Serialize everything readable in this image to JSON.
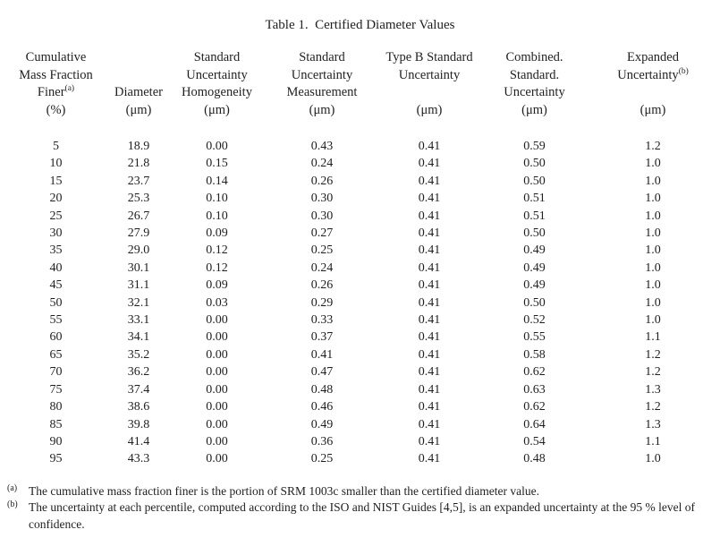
{
  "title": "Table 1.  Certified Diameter Values",
  "table": {
    "columns": [
      {
        "lines": [
          "Cumulative",
          "Mass Fraction",
          "Finer",
          "(%)"
        ],
        "sup_line": 2,
        "sup_text": "(a)"
      },
      {
        "lines": [
          "",
          "",
          "Diameter",
          "(μm)"
        ]
      },
      {
        "lines": [
          "Standard",
          "Uncertainty",
          "Homogeneity",
          "(μm)"
        ]
      },
      {
        "lines": [
          "Standard",
          "Uncertainty",
          "Measurement",
          "(μm)"
        ]
      },
      {
        "lines": [
          "Type B Standard",
          "Uncertainty",
          "",
          "(μm)"
        ]
      },
      {
        "lines": [
          "Combined.",
          "Standard.",
          "Uncertainty",
          "(μm)"
        ]
      },
      {
        "lines": [
          "Expanded",
          "Uncertainty",
          "",
          "(μm)"
        ],
        "sup_line": 1,
        "sup_text": "(b)"
      }
    ],
    "rows": [
      [
        "5",
        "18.9",
        "0.00",
        "0.43",
        "0.41",
        "0.59",
        "1.2"
      ],
      [
        "10",
        "21.8",
        "0.15",
        "0.24",
        "0.41",
        "0.50",
        "1.0"
      ],
      [
        "15",
        "23.7",
        "0.14",
        "0.26",
        "0.41",
        "0.50",
        "1.0"
      ],
      [
        "20",
        "25.3",
        "0.10",
        "0.30",
        "0.41",
        "0.51",
        "1.0"
      ],
      [
        "25",
        "26.7",
        "0.10",
        "0.30",
        "0.41",
        "0.51",
        "1.0"
      ],
      [
        "30",
        "27.9",
        "0.09",
        "0.27",
        "0.41",
        "0.50",
        "1.0"
      ],
      [
        "35",
        "29.0",
        "0.12",
        "0.25",
        "0.41",
        "0.49",
        "1.0"
      ],
      [
        "40",
        "30.1",
        "0.12",
        "0.24",
        "0.41",
        "0.49",
        "1.0"
      ],
      [
        "45",
        "31.1",
        "0.09",
        "0.26",
        "0.41",
        "0.49",
        "1.0"
      ],
      [
        "50",
        "32.1",
        "0.03",
        "0.29",
        "0.41",
        "0.50",
        "1.0"
      ],
      [
        "55",
        "33.1",
        "0.00",
        "0.33",
        "0.41",
        "0.52",
        "1.0"
      ],
      [
        "60",
        "34.1",
        "0.00",
        "0.37",
        "0.41",
        "0.55",
        "1.1"
      ],
      [
        "65",
        "35.2",
        "0.00",
        "0.41",
        "0.41",
        "0.58",
        "1.2"
      ],
      [
        "70",
        "36.2",
        "0.00",
        "0.47",
        "0.41",
        "0.62",
        "1.2"
      ],
      [
        "75",
        "37.4",
        "0.00",
        "0.48",
        "0.41",
        "0.63",
        "1.3"
      ],
      [
        "80",
        "38.6",
        "0.00",
        "0.46",
        "0.41",
        "0.62",
        "1.2"
      ],
      [
        "85",
        "39.8",
        "0.00",
        "0.49",
        "0.41",
        "0.64",
        "1.3"
      ],
      [
        "90",
        "41.4",
        "0.00",
        "0.36",
        "0.41",
        "0.54",
        "1.1"
      ],
      [
        "95",
        "43.3",
        "0.00",
        "0.25",
        "0.41",
        "0.48",
        "1.0"
      ]
    ]
  },
  "footnotes": [
    {
      "marker": "(a)",
      "text": "The cumulative mass fraction finer is the portion of SRM 1003c smaller than the certified diameter value."
    },
    {
      "marker": "(b)",
      "text": "The uncertainty at each percentile, computed according to the ISO and NIST Guides [4,5], is an expanded uncertainty at the 95 % level of confidence."
    }
  ]
}
